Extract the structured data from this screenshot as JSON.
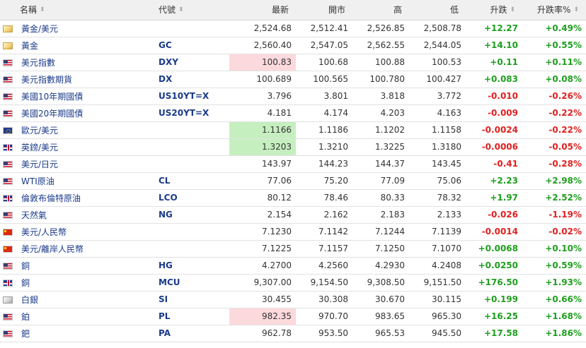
{
  "headers": {
    "name": "名稱",
    "code": "代號",
    "last": "最新",
    "open": "開市",
    "high": "高",
    "low": "低",
    "change": "升跌",
    "change_pct": "升跌率%"
  },
  "sort_glyph": "⬍",
  "colors": {
    "up": "#1f9e1f",
    "down": "#e02020",
    "highlight_red": "#fcd9dc",
    "highlight_green": "#c6efc0"
  },
  "rows": [
    {
      "icon": "gold-icon",
      "name": "黃金/美元",
      "code": "",
      "last": "2,524.68",
      "open": "2,512.41",
      "high": "2,526.85",
      "low": "2,508.78",
      "change": "+12.27",
      "change_pct": "+0.49%",
      "dir": "pos",
      "hl": ""
    },
    {
      "icon": "gold-icon",
      "name": "黃金",
      "code": "GC",
      "last": "2,560.40",
      "open": "2,547.05",
      "high": "2,562.55",
      "low": "2,544.05",
      "change": "+14.10",
      "change_pct": "+0.55%",
      "dir": "pos",
      "hl": ""
    },
    {
      "icon": "us-flag-icon",
      "name": "美元指數",
      "code": "DXY",
      "last": "100.83",
      "open": "100.68",
      "high": "100.88",
      "low": "100.53",
      "change": "+0.11",
      "change_pct": "+0.11%",
      "dir": "pos",
      "hl": "red"
    },
    {
      "icon": "us-flag-icon",
      "name": "美元指數期貨",
      "code": "DX",
      "last": "100.689",
      "open": "100.565",
      "high": "100.780",
      "low": "100.427",
      "change": "+0.083",
      "change_pct": "+0.08%",
      "dir": "pos",
      "hl": ""
    },
    {
      "icon": "us-flag-icon",
      "name": "美國10年期國債",
      "code": "US10YT=X",
      "last": "3.796",
      "open": "3.801",
      "high": "3.818",
      "low": "3.772",
      "change": "-0.010",
      "change_pct": "-0.26%",
      "dir": "neg",
      "hl": ""
    },
    {
      "icon": "us-flag-icon",
      "name": "美國20年期國債",
      "code": "US20YT=X",
      "last": "4.181",
      "open": "4.174",
      "high": "4.203",
      "low": "4.163",
      "change": "-0.009",
      "change_pct": "-0.22%",
      "dir": "neg",
      "hl": ""
    },
    {
      "icon": "eu-flag-icon",
      "name": "歐元/美元",
      "code": "",
      "last": "1.1166",
      "open": "1.1186",
      "high": "1.1202",
      "low": "1.1158",
      "change": "-0.0024",
      "change_pct": "-0.22%",
      "dir": "neg",
      "hl": "green"
    },
    {
      "icon": "uk-flag-icon",
      "name": "英鎊/美元",
      "code": "",
      "last": "1.3203",
      "open": "1.3210",
      "high": "1.3225",
      "low": "1.3180",
      "change": "-0.0006",
      "change_pct": "-0.05%",
      "dir": "neg",
      "hl": "green"
    },
    {
      "icon": "us-flag-icon",
      "name": "美元/日元",
      "code": "",
      "last": "143.97",
      "open": "144.23",
      "high": "144.37",
      "low": "143.45",
      "change": "-0.41",
      "change_pct": "-0.28%",
      "dir": "neg",
      "hl": ""
    },
    {
      "icon": "us-flag-icon",
      "name": "WTI原油",
      "code": "CL",
      "last": "77.06",
      "open": "75.20",
      "high": "77.09",
      "low": "75.06",
      "change": "+2.23",
      "change_pct": "+2.98%",
      "dir": "pos",
      "hl": ""
    },
    {
      "icon": "uk-flag-icon",
      "name": "倫敦布倫特原油",
      "code": "LCO",
      "last": "80.12",
      "open": "78.46",
      "high": "80.33",
      "low": "78.32",
      "change": "+1.97",
      "change_pct": "+2.52%",
      "dir": "pos",
      "hl": ""
    },
    {
      "icon": "us-flag-icon",
      "name": "天然氣",
      "code": "NG",
      "last": "2.154",
      "open": "2.162",
      "high": "2.183",
      "low": "2.133",
      "change": "-0.026",
      "change_pct": "-1.19%",
      "dir": "neg",
      "hl": ""
    },
    {
      "icon": "cn-flag-icon",
      "name": "美元/人民幣",
      "code": "",
      "last": "7.1230",
      "open": "7.1142",
      "high": "7.1244",
      "low": "7.1139",
      "change": "-0.0014",
      "change_pct": "-0.02%",
      "dir": "neg",
      "hl": ""
    },
    {
      "icon": "cn-flag-icon",
      "name": "美元/離岸人民幣",
      "code": "",
      "last": "7.1225",
      "open": "7.1157",
      "high": "7.1250",
      "low": "7.1070",
      "change": "+0.0068",
      "change_pct": "+0.10%",
      "dir": "pos",
      "hl": ""
    },
    {
      "icon": "us-flag-icon",
      "name": "銅",
      "code": "HG",
      "last": "4.2700",
      "open": "4.2560",
      "high": "4.2930",
      "low": "4.2408",
      "change": "+0.0250",
      "change_pct": "+0.59%",
      "dir": "pos",
      "hl": ""
    },
    {
      "icon": "uk-flag-icon",
      "name": "銅",
      "code": "MCU",
      "last": "9,307.00",
      "open": "9,154.50",
      "high": "9,308.50",
      "low": "9,151.50",
      "change": "+176.50",
      "change_pct": "+1.93%",
      "dir": "pos",
      "hl": ""
    },
    {
      "icon": "silver-icon",
      "name": "白銀",
      "code": "SI",
      "last": "30.455",
      "open": "30.308",
      "high": "30.670",
      "low": "30.115",
      "change": "+0.199",
      "change_pct": "+0.66%",
      "dir": "pos",
      "hl": ""
    },
    {
      "icon": "us-flag-icon",
      "name": "鉑",
      "code": "PL",
      "last": "982.35",
      "open": "970.70",
      "high": "983.65",
      "low": "965.30",
      "change": "+16.25",
      "change_pct": "+1.68%",
      "dir": "pos",
      "hl": "red"
    },
    {
      "icon": "us-flag-icon",
      "name": "鈀",
      "code": "PA",
      "last": "962.78",
      "open": "953.50",
      "high": "965.53",
      "low": "945.50",
      "change": "+17.58",
      "change_pct": "+1.86%",
      "dir": "pos",
      "hl": ""
    }
  ]
}
